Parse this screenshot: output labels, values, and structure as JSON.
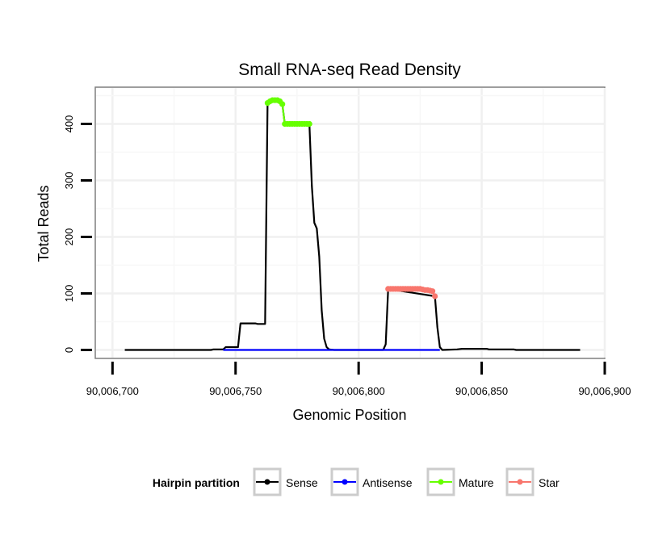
{
  "chart_data": {
    "type": "line",
    "title": "Small RNA-seq Read Density",
    "xlabel": "Genomic Position",
    "ylabel": "Total Reads",
    "xlim": [
      90006693,
      90006900
    ],
    "ylim": [
      -15,
      465
    ],
    "x_ticks": [
      90006700,
      90006750,
      90006800,
      90006850,
      90006900
    ],
    "x_tick_labels": [
      "90,006,700",
      "90,006,750",
      "90,006,800",
      "90,006,850",
      "90,006,900"
    ],
    "y_ticks": [
      0,
      100,
      200,
      300,
      400
    ],
    "y_tick_labels": [
      "0",
      "100",
      "200",
      "300",
      "400"
    ],
    "grid": true,
    "legend": {
      "title": "Hairpin partition",
      "position": "bottom",
      "entries": [
        {
          "name": "Sense",
          "color": "#000000"
        },
        {
          "name": "Antisense",
          "color": "#0000ff"
        },
        {
          "name": "Mature",
          "color": "#66ff00"
        },
        {
          "name": "Star",
          "color": "#f8766d"
        }
      ]
    },
    "series": [
      {
        "name": "Sense",
        "color": "#000000",
        "markers": false,
        "x": [
          90006705,
          90006740,
          90006741,
          90006745,
          90006746,
          90006751,
          90006752,
          90006758,
          90006759,
          90006762,
          90006763,
          90006764,
          90006765,
          90006766,
          90006767,
          90006768,
          90006769,
          90006770,
          90006780,
          90006781,
          90006782,
          90006783,
          90006784,
          90006785,
          90006786,
          90006787,
          90006788,
          90006790,
          90006805,
          90006810,
          90006811,
          90006812,
          90006831,
          90006832,
          90006833,
          90006834,
          90006840,
          90006842,
          90006852,
          90006853,
          90006855,
          90006863,
          90006864,
          90006890
        ],
        "y": [
          0,
          0,
          1,
          1,
          5,
          5,
          47,
          47,
          46,
          46,
          437,
          440,
          442,
          442,
          442,
          440,
          435,
          400,
          400,
          290,
          225,
          215,
          165,
          70,
          20,
          5,
          1,
          0,
          0,
          0,
          10,
          108,
          95,
          40,
          5,
          0,
          1,
          2,
          2,
          1,
          1,
          1,
          0,
          0
        ]
      },
      {
        "name": "Antisense",
        "color": "#0000ff",
        "markers": false,
        "x": [
          90006745,
          90006752,
          90006833
        ],
        "y": [
          0,
          0,
          0
        ]
      },
      {
        "name": "Mature",
        "color": "#66ff00",
        "markers": true,
        "x": [
          90006763,
          90006764,
          90006765,
          90006766,
          90006767,
          90006768,
          90006769,
          90006770,
          90006771,
          90006772,
          90006773,
          90006774,
          90006775,
          90006776,
          90006777,
          90006778,
          90006779,
          90006780
        ],
        "y": [
          437,
          440,
          442,
          442,
          442,
          440,
          435,
          400,
          400,
          400,
          400,
          400,
          400,
          400,
          400,
          400,
          400,
          400
        ]
      },
      {
        "name": "Star",
        "color": "#f8766d",
        "markers": true,
        "x": [
          90006812,
          90006813,
          90006814,
          90006815,
          90006816,
          90006817,
          90006818,
          90006819,
          90006820,
          90006821,
          90006822,
          90006823,
          90006824,
          90006825,
          90006826,
          90006827,
          90006828,
          90006829,
          90006830,
          90006831
        ],
        "y": [
          108,
          108,
          108,
          108,
          108,
          108,
          108,
          108,
          108,
          108,
          108,
          108,
          108,
          108,
          107,
          106,
          106,
          105,
          104,
          95
        ]
      }
    ]
  }
}
